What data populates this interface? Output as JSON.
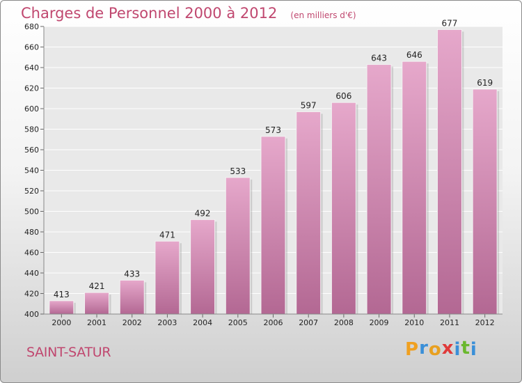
{
  "chart_data": {
    "type": "bar",
    "title": "Charges de Personnel 2000 à 2012",
    "subtitle": "(en milliers d'€)",
    "categories": [
      "2000",
      "2001",
      "2002",
      "2003",
      "2004",
      "2005",
      "2006",
      "2007",
      "2008",
      "2009",
      "2010",
      "2011",
      "2012"
    ],
    "values": [
      413,
      421,
      433,
      471,
      492,
      533,
      573,
      597,
      606,
      643,
      646,
      677,
      619
    ],
    "ylim": [
      400,
      680
    ],
    "yticks": [
      400,
      420,
      440,
      460,
      480,
      500,
      520,
      540,
      560,
      580,
      600,
      620,
      640,
      660,
      680
    ],
    "grid": true,
    "bar_color_top": "#e6a8cb",
    "bar_color_bottom": "#b36893"
  },
  "footer": {
    "town": "SAINT-SATUR",
    "logo_letters": [
      {
        "char": "P",
        "color": "#f0a020"
      },
      {
        "char": "r",
        "color": "#3a8fd8"
      },
      {
        "char": "o",
        "color": "#e8a020"
      },
      {
        "char": "x",
        "color": "#e03a3a"
      },
      {
        "char": "i",
        "color": "#3a8fd8"
      },
      {
        "char": "t",
        "color": "#6ab82e"
      },
      {
        "char": "i",
        "color": "#3a8fd8"
      }
    ]
  },
  "colors": {
    "accent": "#c0476f"
  }
}
